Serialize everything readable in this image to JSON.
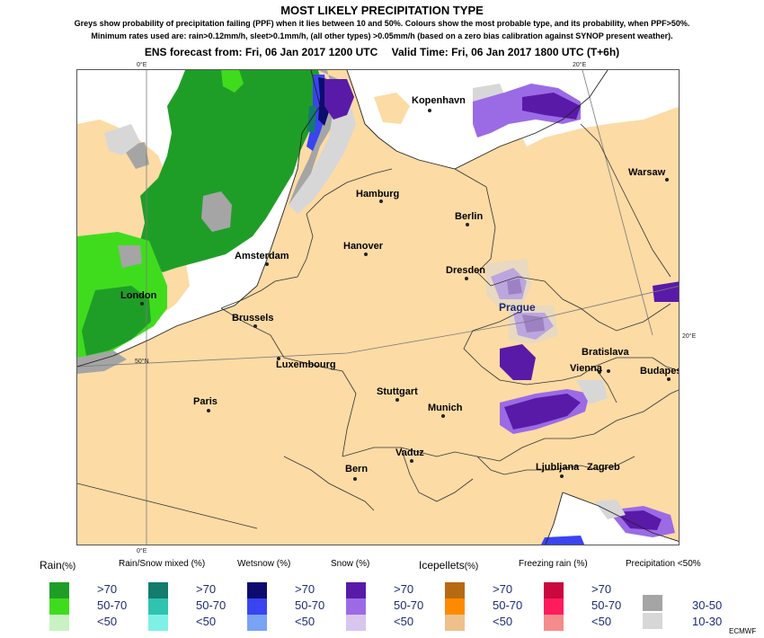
{
  "header": {
    "title": "MOST LIKELY PRECIPITATION TYPE",
    "subtitle_1": "Greys show probability of precipitation failing (PPF) when it lies between 10 and 50%. Colours show the most probable type, and its probability, when PPF>50%.",
    "subtitle_2": "Minimum rates used are: rain>0.12mm/h, sleet>0.1mm/h, (all other types) >0.05mm/h (based on a zero bias calibration against SYNOP present weather).",
    "forecast_from": "ENS forecast from: Fri, 06 Jan 2017 1200 UTC",
    "valid_time": "Valid Time: Fri, 06 Jan 2017 1800 UTC (T+6h)"
  },
  "map": {
    "graticule_labels": {
      "top_0e": "0°E",
      "top_20e": "20°E",
      "right_20e": "20°E",
      "left_50n": "50°N",
      "bottom_0e": "0°E"
    },
    "cities": {
      "kopenhavn": "Kopenhavn",
      "hamburg": "Hamburg",
      "berlin": "Berlin",
      "warsaw": "Warsaw",
      "amsterdam": "Amsterdam",
      "hanover": "Hanover",
      "dresden": "Dresden",
      "london": "London",
      "brussels": "Brussels",
      "prague": "Prague",
      "luxembourg": "Luxembourg",
      "bratislava": "Bratislava",
      "vienna": "Vienna",
      "budapest": "Budapest",
      "paris": "Paris",
      "stuttgart": "Stuttgart",
      "munich": "Munich",
      "vaduz": "Vaduz",
      "bern": "Bern",
      "ljubljana": "Ljubljana",
      "zagreb": "Zagreb"
    },
    "colors": {
      "land": "#fcdba5",
      "sea": "#ffffff",
      "rain_high": "#1f9e27",
      "rain_mid": "#3fdc1e",
      "grey_30_50": "#a5a5a5",
      "grey_10_30": "#d7d7d7",
      "snow_high": "#5a1aa8",
      "snow_mid": "#9b6be6",
      "wetsnow_high": "#0c0c6e",
      "wetsnow_mid": "#3a44f0",
      "rainsnow_high": "#137c6c"
    }
  },
  "legend": {
    "groups": [
      {
        "label": "Rain",
        "pct": "(%)",
        "colors": [
          "#1f9e27",
          "#3fdc1e",
          "#c9f2c3"
        ]
      },
      {
        "label": "Rain/Snow mixed",
        "pct": "(%)",
        "colors": [
          "#137c6c",
          "#2ec4b0",
          "#7ff0e6"
        ]
      },
      {
        "label": "Wetsnow",
        "pct": "(%)",
        "colors": [
          "#0c0c6e",
          "#3a44f0",
          "#7aa2f5"
        ]
      },
      {
        "label": "Snow",
        "pct": "(%)",
        "colors": [
          "#5a1aa8",
          "#9b6be6",
          "#d8c6ef"
        ]
      },
      {
        "label": "Icepellets",
        "pct": "(%)",
        "colors": [
          "#b86a12",
          "#ff8a00",
          "#f0c08c"
        ]
      },
      {
        "label": "Freezing rain",
        "pct": "(%)",
        "colors": [
          "#c8083e",
          "#ff1c5c",
          "#f58b8b"
        ]
      }
    ],
    "levels": [
      ">70",
      "50-70",
      "<50"
    ],
    "ppf_label": "Precipitation <50%",
    "ppf_levels": [
      "30-50",
      "10-30"
    ],
    "ppf_colors": [
      "#a5a5a5",
      "#d7d7d7"
    ]
  },
  "credit": "ECMWF"
}
